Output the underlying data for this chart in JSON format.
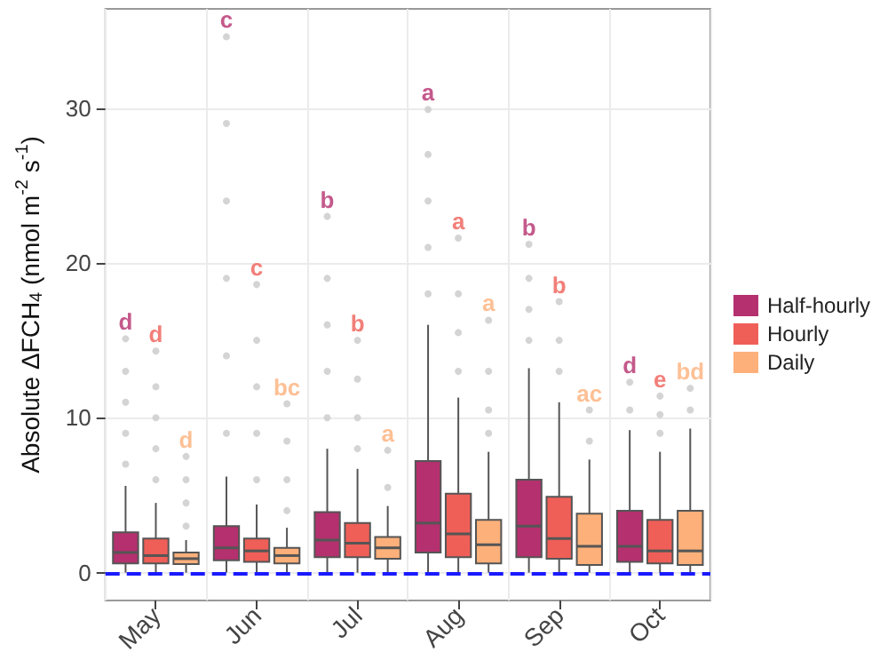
{
  "chart_data": {
    "type": "box",
    "ylabel": "Absolute ΔFCH$_{4}$ (nmol m$^{-2}$ s$^{-1}$)",
    "categories": [
      "May",
      "Jun",
      "Jul",
      "Aug",
      "Sep",
      "Oct"
    ],
    "ylim": [
      -1.8,
      36.4
    ],
    "yticks": [
      0,
      10,
      20,
      30
    ],
    "grid": true,
    "legend": "right",
    "series": [
      {
        "name": "Half-hourly",
        "color": "#b5306e",
        "boxes": [
          {
            "low": 0,
            "q1": 0.6,
            "median": 1.3,
            "q3": 2.6,
            "high": 5.6,
            "outliers": [
              7,
              9,
              11,
              13,
              15.1
            ]
          },
          {
            "low": 0,
            "q1": 0.8,
            "median": 1.6,
            "q3": 3.0,
            "high": 6.2,
            "outliers": [
              9,
              14,
              19,
              24,
              29,
              34.6
            ]
          },
          {
            "low": 0,
            "q1": 1.0,
            "median": 2.1,
            "q3": 3.9,
            "high": 8.0,
            "outliers": [
              10,
              13,
              16,
              19,
              23.0
            ]
          },
          {
            "low": 0,
            "q1": 1.3,
            "median": 3.2,
            "q3": 7.2,
            "high": 16.0,
            "outliers": [
              18,
              21,
              24,
              27,
              29.9
            ]
          },
          {
            "low": 0,
            "q1": 1.0,
            "median": 3.0,
            "q3": 6.0,
            "high": 13.2,
            "outliers": [
              15,
              17,
              19,
              21.2
            ]
          },
          {
            "low": 0,
            "q1": 0.7,
            "median": 1.7,
            "q3": 4.0,
            "high": 9.2,
            "outliers": [
              10.5,
              12.3
            ]
          }
        ]
      },
      {
        "name": "Hourly",
        "color": "#ef5f57",
        "boxes": [
          {
            "low": 0,
            "q1": 0.6,
            "median": 1.1,
            "q3": 2.2,
            "high": 4.5,
            "outliers": [
              6,
              8,
              10,
              12,
              14.3
            ]
          },
          {
            "low": 0,
            "q1": 0.7,
            "median": 1.4,
            "q3": 2.2,
            "high": 4.4,
            "outliers": [
              6,
              9,
              12,
              15,
              18.6
            ]
          },
          {
            "low": 0,
            "q1": 1.0,
            "median": 1.9,
            "q3": 3.2,
            "high": 6.7,
            "outliers": [
              8,
              10,
              12.5,
              15.0
            ]
          },
          {
            "low": 0,
            "q1": 1.0,
            "median": 2.5,
            "q3": 5.1,
            "high": 11.3,
            "outliers": [
              13,
              15.5,
              18,
              21.6
            ]
          },
          {
            "low": 0,
            "q1": 0.9,
            "median": 2.2,
            "q3": 4.9,
            "high": 11.0,
            "outliers": [
              13,
              15,
              17.5
            ]
          },
          {
            "low": 0,
            "q1": 0.6,
            "median": 1.4,
            "q3": 3.4,
            "high": 7.8,
            "outliers": [
              9,
              10.2,
              11.4
            ]
          }
        ]
      },
      {
        "name": "Daily",
        "color": "#fdb07a",
        "boxes": [
          {
            "low": 0,
            "q1": 0.55,
            "median": 0.9,
            "q3": 1.3,
            "high": 2.1,
            "outliers": [
              3,
              4.5,
              6,
              7.5
            ]
          },
          {
            "low": 0,
            "q1": 0.6,
            "median": 1.1,
            "q3": 1.6,
            "high": 2.9,
            "outliers": [
              4,
              6,
              8.5,
              10.9
            ]
          },
          {
            "low": 0,
            "q1": 0.9,
            "median": 1.6,
            "q3": 2.3,
            "high": 4.3,
            "outliers": [
              5.5,
              7.9
            ]
          },
          {
            "low": 0,
            "q1": 0.6,
            "median": 1.8,
            "q3": 3.4,
            "high": 7.8,
            "outliers": [
              9,
              10.5,
              13,
              16.3
            ]
          },
          {
            "low": 0,
            "q1": 0.5,
            "median": 1.7,
            "q3": 3.8,
            "high": 7.3,
            "outliers": [
              8.5,
              10.5
            ]
          },
          {
            "low": 0,
            "q1": 0.5,
            "median": 1.4,
            "q3": 4.0,
            "high": 9.3,
            "outliers": [
              10.5,
              11.9
            ]
          }
        ]
      }
    ],
    "ref_lines": [
      {
        "axis": "y",
        "value": 0,
        "color": "#1a1aff",
        "line_style": "dashed"
      }
    ],
    "annotations": [
      "d",
      "d",
      "d",
      "c",
      "c",
      "bc",
      "b",
      "b",
      "a",
      "a",
      "a",
      "a",
      "b",
      "b",
      "ac",
      "d",
      "e",
      "bd"
    ]
  }
}
